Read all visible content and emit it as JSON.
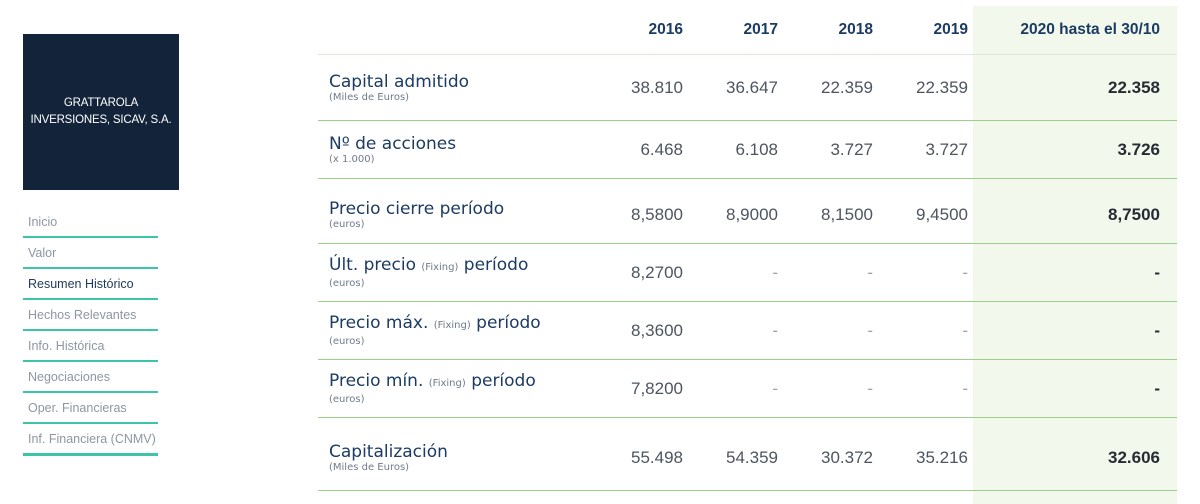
{
  "company": {
    "line1": "GRATTAROLA",
    "line2": "INVERSIONES, SICAV, S.A."
  },
  "nav": [
    {
      "label": "Inicio"
    },
    {
      "label": "Valor"
    },
    {
      "label": "Resumen Histórico"
    },
    {
      "label": "Hechos Relevantes"
    },
    {
      "label": "Info. Histórica"
    },
    {
      "label": "Negociaciones"
    },
    {
      "label": "Oper. Financieras"
    },
    {
      "label": "Inf. Financiera (CNMV)"
    }
  ],
  "active_nav": "Resumen Histórico",
  "colors": {
    "logo_bg": "#13243a",
    "accent": "#3ec5a8",
    "highlight_col": "#f2f8ec",
    "divider": "#9bd08a"
  },
  "table": {
    "headers": [
      "2016",
      "2017",
      "2018",
      "2019",
      "2020 hasta el 30/10"
    ],
    "rows": [
      {
        "label": "Capital admitido",
        "sub": "(Miles de Euros)",
        "values": [
          "38.810",
          "36.647",
          "22.359",
          "22.359",
          "22.358"
        ]
      },
      {
        "label": "Nº de acciones",
        "sub": "(x 1.000)",
        "values": [
          "6.468",
          "6.108",
          "3.727",
          "3.727",
          "3.726"
        ]
      },
      {
        "label": "Precio cierre período",
        "sub": "(euros)",
        "values": [
          "8,5800",
          "8,9000",
          "8,1500",
          "9,4500",
          "8,7500"
        ]
      },
      {
        "label_a": "Últ. precio",
        "fixing": "(Fixing)",
        "label_b": "período",
        "sub": "(euros)",
        "values": [
          "8,2700",
          "-",
          "-",
          "-",
          "-"
        ]
      },
      {
        "label_a": "Precio máx.",
        "fixing": "(Fixing)",
        "label_b": "período",
        "sub": "(euros)",
        "values": [
          "8,3600",
          "-",
          "-",
          "-",
          "-"
        ]
      },
      {
        "label_a": "Precio mín.",
        "fixing": "(Fixing)",
        "label_b": "período",
        "sub": "(euros)",
        "values": [
          "7,8200",
          "-",
          "-",
          "-",
          "-"
        ]
      },
      {
        "label": "Capitalización",
        "sub": "(Miles de Euros)",
        "values": [
          "55.498",
          "54.359",
          "30.372",
          "35.216",
          "32.606"
        ]
      }
    ]
  }
}
